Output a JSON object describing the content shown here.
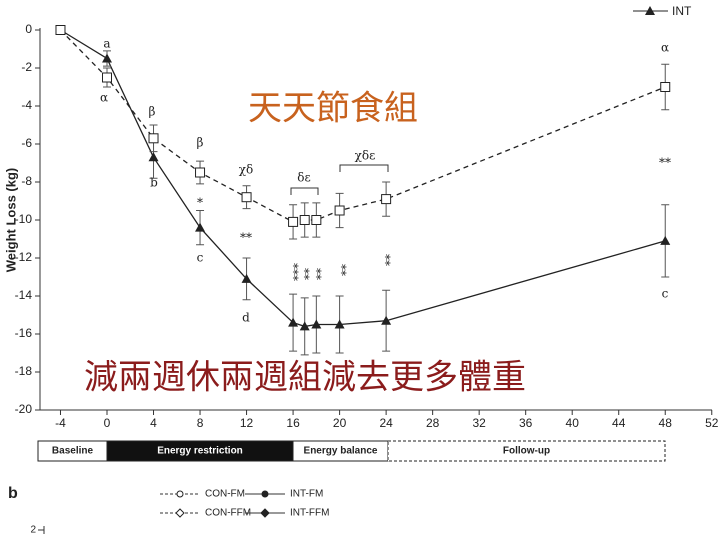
{
  "chart_data": {
    "type": "line",
    "y_label": "Weight Loss (kg)",
    "x": [
      -4,
      0,
      4,
      8,
      12,
      16,
      17,
      18,
      20,
      24,
      48
    ],
    "xlim": [
      -4,
      52
    ],
    "xticks": [
      -4,
      0,
      4,
      8,
      12,
      16,
      20,
      24,
      28,
      32,
      36,
      40,
      44,
      48,
      52
    ],
    "ylim": [
      -20,
      0
    ],
    "yticks": [
      0,
      -2,
      -4,
      -6,
      -8,
      -10,
      -12,
      -14,
      -16,
      -18,
      -20
    ],
    "series": [
      {
        "name": "INT",
        "color": "#222222",
        "marker": "triangle",
        "dashed": false,
        "values": [
          0,
          -1.5,
          -6.7,
          -10.4,
          -13.1,
          -15.4,
          -15.6,
          -15.5,
          -15.5,
          -15.3,
          -11.1
        ],
        "errors": [
          0,
          0.4,
          1.1,
          0.9,
          1.1,
          1.5,
          1.5,
          1.5,
          1.5,
          1.6,
          1.9
        ]
      },
      {
        "color": "#222222",
        "marker": "square",
        "dashed": true,
        "values": [
          0,
          -2.5,
          -5.7,
          -7.5,
          -8.8,
          -10.1,
          -10.0,
          -10.0,
          -9.5,
          -8.9,
          -3.0
        ],
        "errors": [
          0,
          0.5,
          0.7,
          0.6,
          0.6,
          0.9,
          0.9,
          0.9,
          0.9,
          0.9,
          1.2
        ]
      }
    ],
    "annotations": [
      "a",
      "α",
      "β",
      "b",
      "β",
      "*",
      "c",
      "χδ",
      "**",
      "d",
      "δε",
      "χδε",
      "***",
      "**",
      "**",
      "**",
      "**",
      "α",
      "**",
      "c"
    ],
    "phases": [
      "Baseline",
      "Energy restriction",
      "Energy balance",
      "Follow-up"
    ],
    "overlay_texts": [
      "天天節食組",
      "減兩週休兩週組減去更多體重"
    ]
  },
  "panel_b": {
    "label": "b",
    "legend": [
      "CON-FM",
      "INT-FM",
      "CON-FFM",
      "INT-FFM"
    ],
    "yticks": [
      2
    ]
  }
}
